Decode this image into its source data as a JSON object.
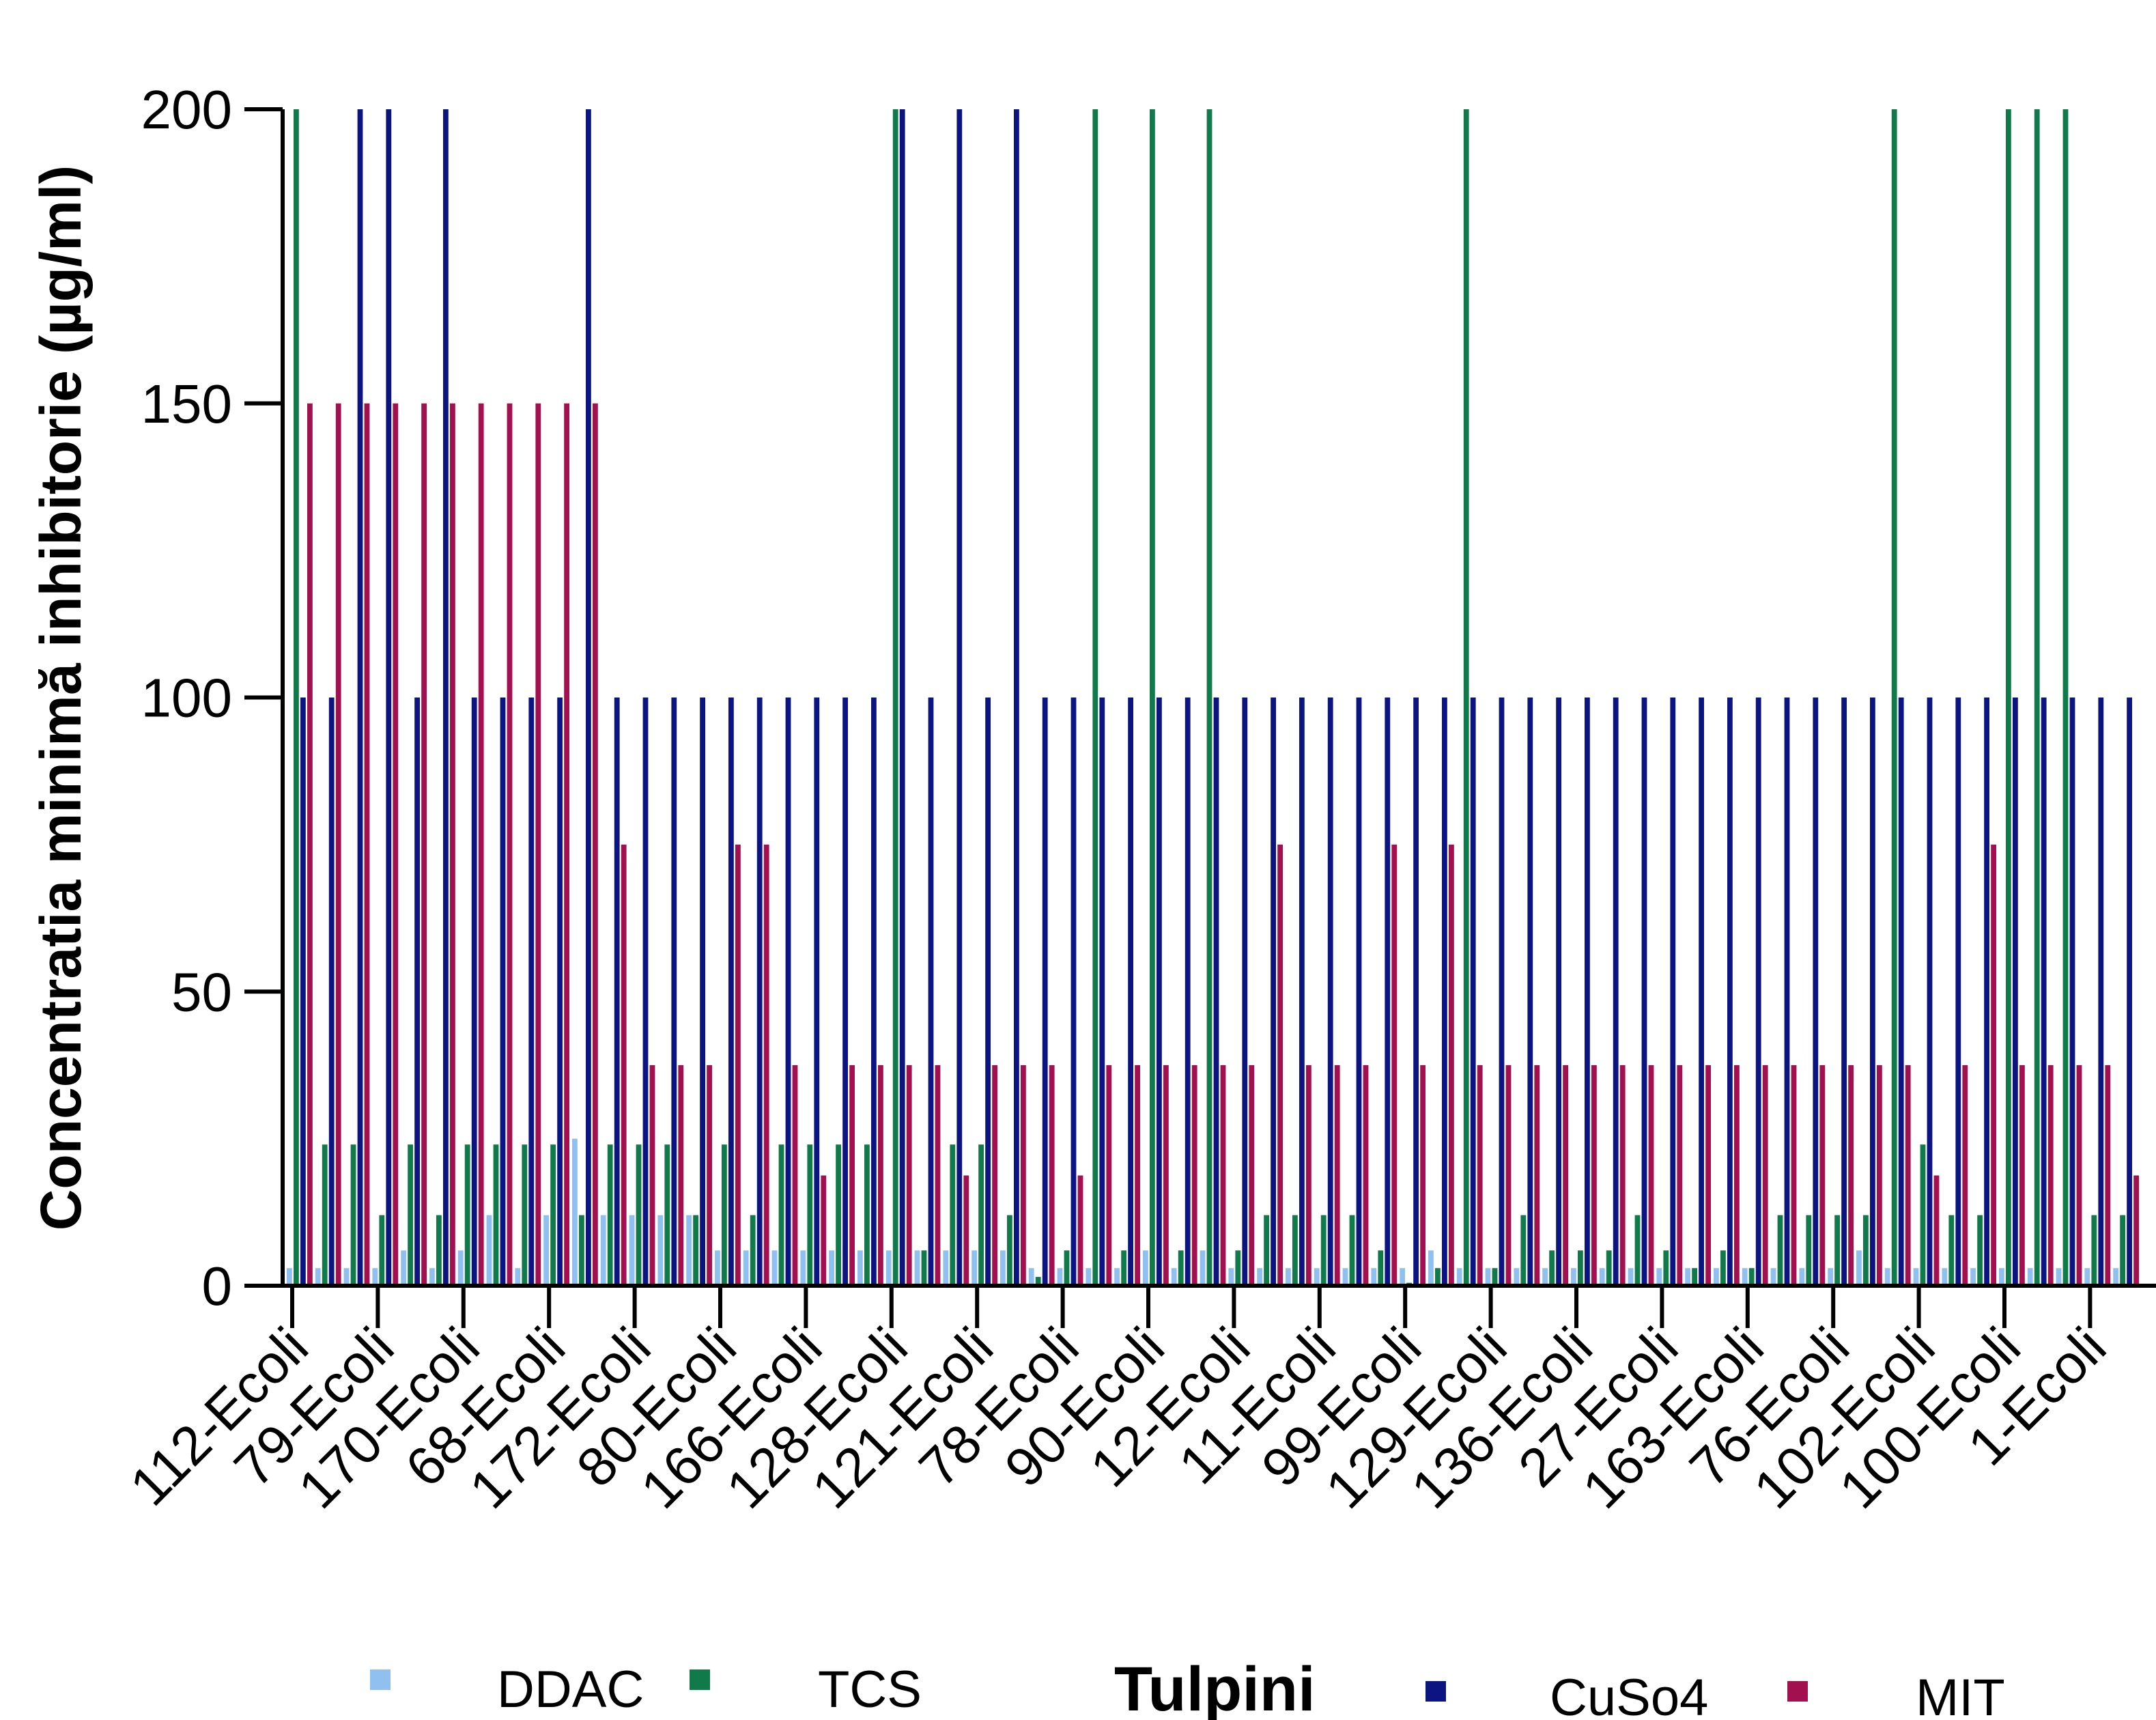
{
  "chart_data": {
    "type": "bar",
    "title": "",
    "xlabel": "Tulpini",
    "ylabel": "Concentratia minimă inhibitorie (µg/ml)",
    "ylim": [
      0,
      200
    ],
    "yticks": [
      0,
      50,
      100,
      150,
      200
    ],
    "legend_position": "bottom",
    "x_tick_labels": [
      "112-Ecoli",
      "79-Ecoli",
      "170-Ecoli",
      "68-Ecoli",
      "172-Ecoli",
      "80-Ecoli",
      "166-Ecoli",
      "128-Ecoli",
      "121-Ecoli",
      "78-Ecoli",
      "90-Ecoli",
      "12-Ecoli",
      "11-Ecoli",
      "99-Ecoli",
      "129-Ecoli",
      "136-Ecoli",
      "27-Ecoli",
      "163-Ecoli",
      "76-Ecoli",
      "102-Ecoli",
      "100-Ecoli",
      "1-Ecoli"
    ],
    "series": [
      {
        "name": "DDAC",
        "color": "#90c0f0",
        "values": [
          3,
          3,
          3,
          3,
          6,
          3,
          6,
          12,
          3,
          12,
          25,
          12,
          12,
          12,
          12,
          6,
          6,
          6,
          6,
          6,
          6,
          6,
          6,
          6,
          6,
          6,
          3,
          3,
          3,
          3,
          6,
          3,
          6,
          3,
          3,
          3,
          3,
          3,
          3,
          3,
          6,
          3,
          3,
          3,
          3,
          3,
          3,
          3,
          3,
          3,
          3,
          3,
          3,
          3,
          3,
          6,
          3,
          3,
          3,
          3,
          3,
          3,
          3,
          3,
          3
        ]
      },
      {
        "name": "TCS",
        "color": "#117a4a",
        "values": [
          200,
          24,
          24,
          12,
          24,
          12,
          24,
          24,
          24,
          24,
          12,
          24,
          24,
          24,
          12,
          24,
          12,
          24,
          24,
          24,
          24,
          200,
          6,
          24,
          24,
          12,
          1.5,
          6,
          200,
          6,
          200,
          6,
          200,
          6,
          12,
          12,
          12,
          12,
          6,
          0.5,
          3,
          200,
          3,
          12,
          6,
          6,
          6,
          12,
          6,
          3,
          6,
          3,
          12,
          12,
          12,
          12,
          200,
          24,
          12,
          12,
          200,
          200,
          200,
          12,
          12
        ]
      },
      {
        "name": "CuSo4",
        "color": "#0b1480",
        "values": [
          100,
          100,
          200,
          200,
          100,
          200,
          100,
          100,
          100,
          100,
          200,
          100,
          100,
          100,
          100,
          100,
          100,
          100,
          100,
          100,
          100,
          200,
          100,
          200,
          100,
          200,
          100,
          100,
          100,
          100,
          100,
          100,
          100,
          100,
          100,
          100,
          100,
          100,
          100,
          100,
          100,
          100,
          100,
          100,
          100,
          100,
          100,
          100,
          100,
          100,
          100,
          100,
          100,
          100,
          100,
          100,
          100,
          100,
          100,
          100,
          100,
          100,
          100,
          100,
          100
        ]
      },
      {
        "name": "MIT",
        "color": "#a3104f",
        "values": [
          150,
          150,
          150,
          150,
          150,
          150,
          150,
          150,
          150,
          150,
          150,
          75,
          37.5,
          37.5,
          37.5,
          75,
          75,
          37.5,
          18.75,
          37.5,
          37.5,
          37.5,
          37.5,
          18.75,
          37.5,
          37.5,
          37.5,
          18.75,
          37.5,
          37.5,
          37.5,
          37.5,
          37.5,
          37.5,
          75,
          37.5,
          37.5,
          37.5,
          75,
          37.5,
          75,
          37.5,
          37.5,
          37.5,
          37.5,
          37.5,
          37.5,
          37.5,
          37.5,
          37.5,
          37.5,
          37.5,
          37.5,
          37.5,
          37.5,
          37.5,
          37.5,
          18.75,
          37.5,
          75,
          37.5,
          37.5,
          37.5,
          37.5,
          18.75
        ]
      }
    ]
  }
}
